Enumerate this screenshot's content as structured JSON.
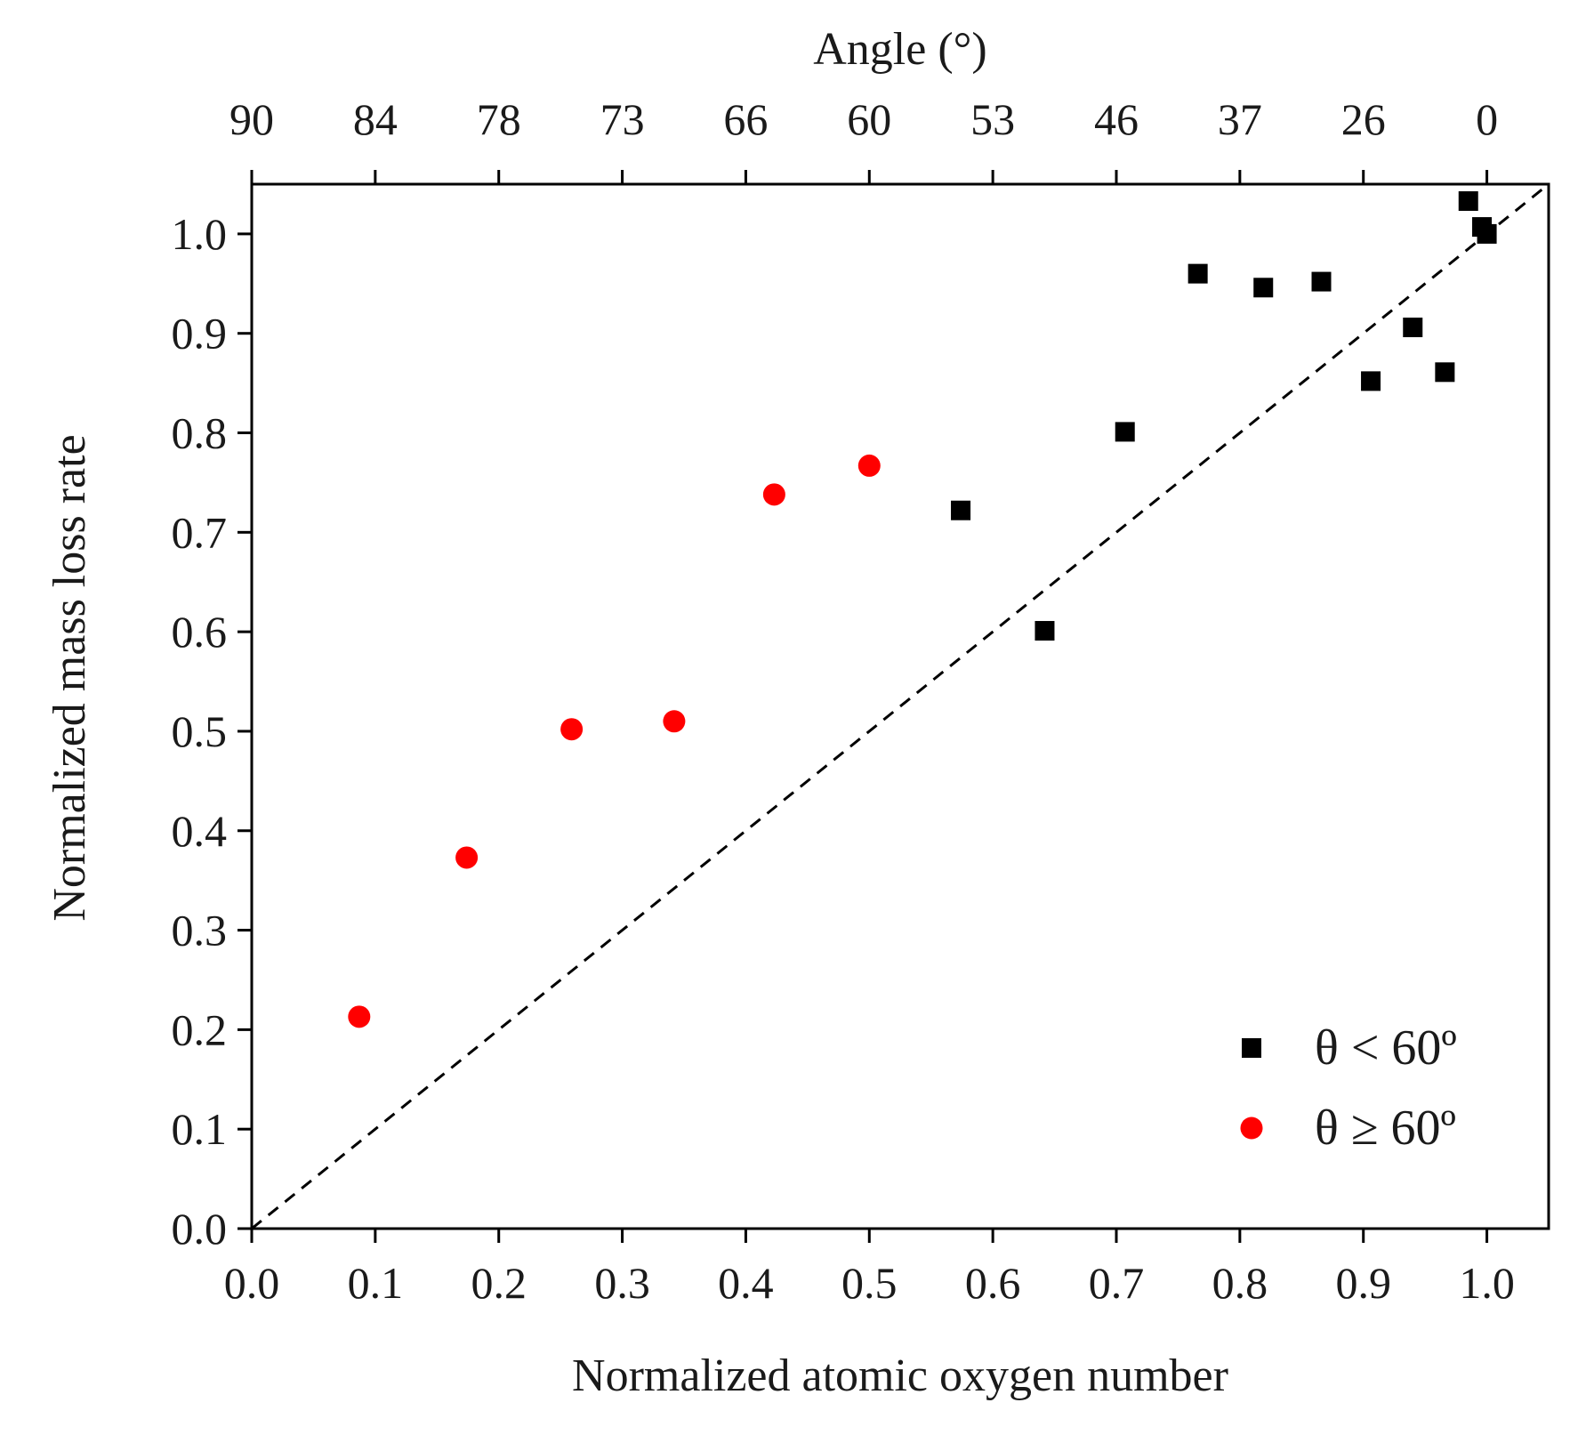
{
  "chart_data": {
    "type": "scatter",
    "xlabel": "Normalized atomic oxygen number",
    "ylabel": "Normalized mass loss rate",
    "top_axis_label": "Angle (°)",
    "xlim": [
      0,
      1.05
    ],
    "ylim": [
      0,
      1.05
    ],
    "x_ticks": [
      "0.0",
      "0.1",
      "0.2",
      "0.3",
      "0.4",
      "0.5",
      "0.6",
      "0.7",
      "0.8",
      "0.9",
      "1.0"
    ],
    "y_ticks": [
      "0.0",
      "0.1",
      "0.2",
      "0.3",
      "0.4",
      "0.5",
      "0.6",
      "0.7",
      "0.8",
      "0.9",
      "1.0"
    ],
    "top_ticks": [
      "90",
      "84",
      "78",
      "73",
      "66",
      "60",
      "53",
      "46",
      "37",
      "26",
      "0"
    ],
    "grid": false,
    "legend_position": "bottom-right",
    "reference_line": {
      "style": "dashed",
      "color": "#000000",
      "from": [
        0,
        0
      ],
      "to": [
        1.05,
        1.05
      ]
    },
    "series": [
      {
        "name": "θ < 60º",
        "marker": "square",
        "color": "#000000",
        "x": [
          0.574,
          0.642,
          0.707,
          0.766,
          0.819,
          0.866,
          0.906,
          0.94,
          0.966,
          0.985,
          0.996,
          1.0
        ],
        "y": [
          0.722,
          0.601,
          0.801,
          0.96,
          0.946,
          0.952,
          0.852,
          0.906,
          0.861,
          1.033,
          1.007,
          1.0
        ]
      },
      {
        "name": "θ ≥ 60º",
        "marker": "circle",
        "color": "#ff0000",
        "x": [
          0.087,
          0.174,
          0.259,
          0.342,
          0.423,
          0.5
        ],
        "y": [
          0.213,
          0.373,
          0.502,
          0.51,
          0.738,
          0.767
        ]
      }
    ]
  }
}
